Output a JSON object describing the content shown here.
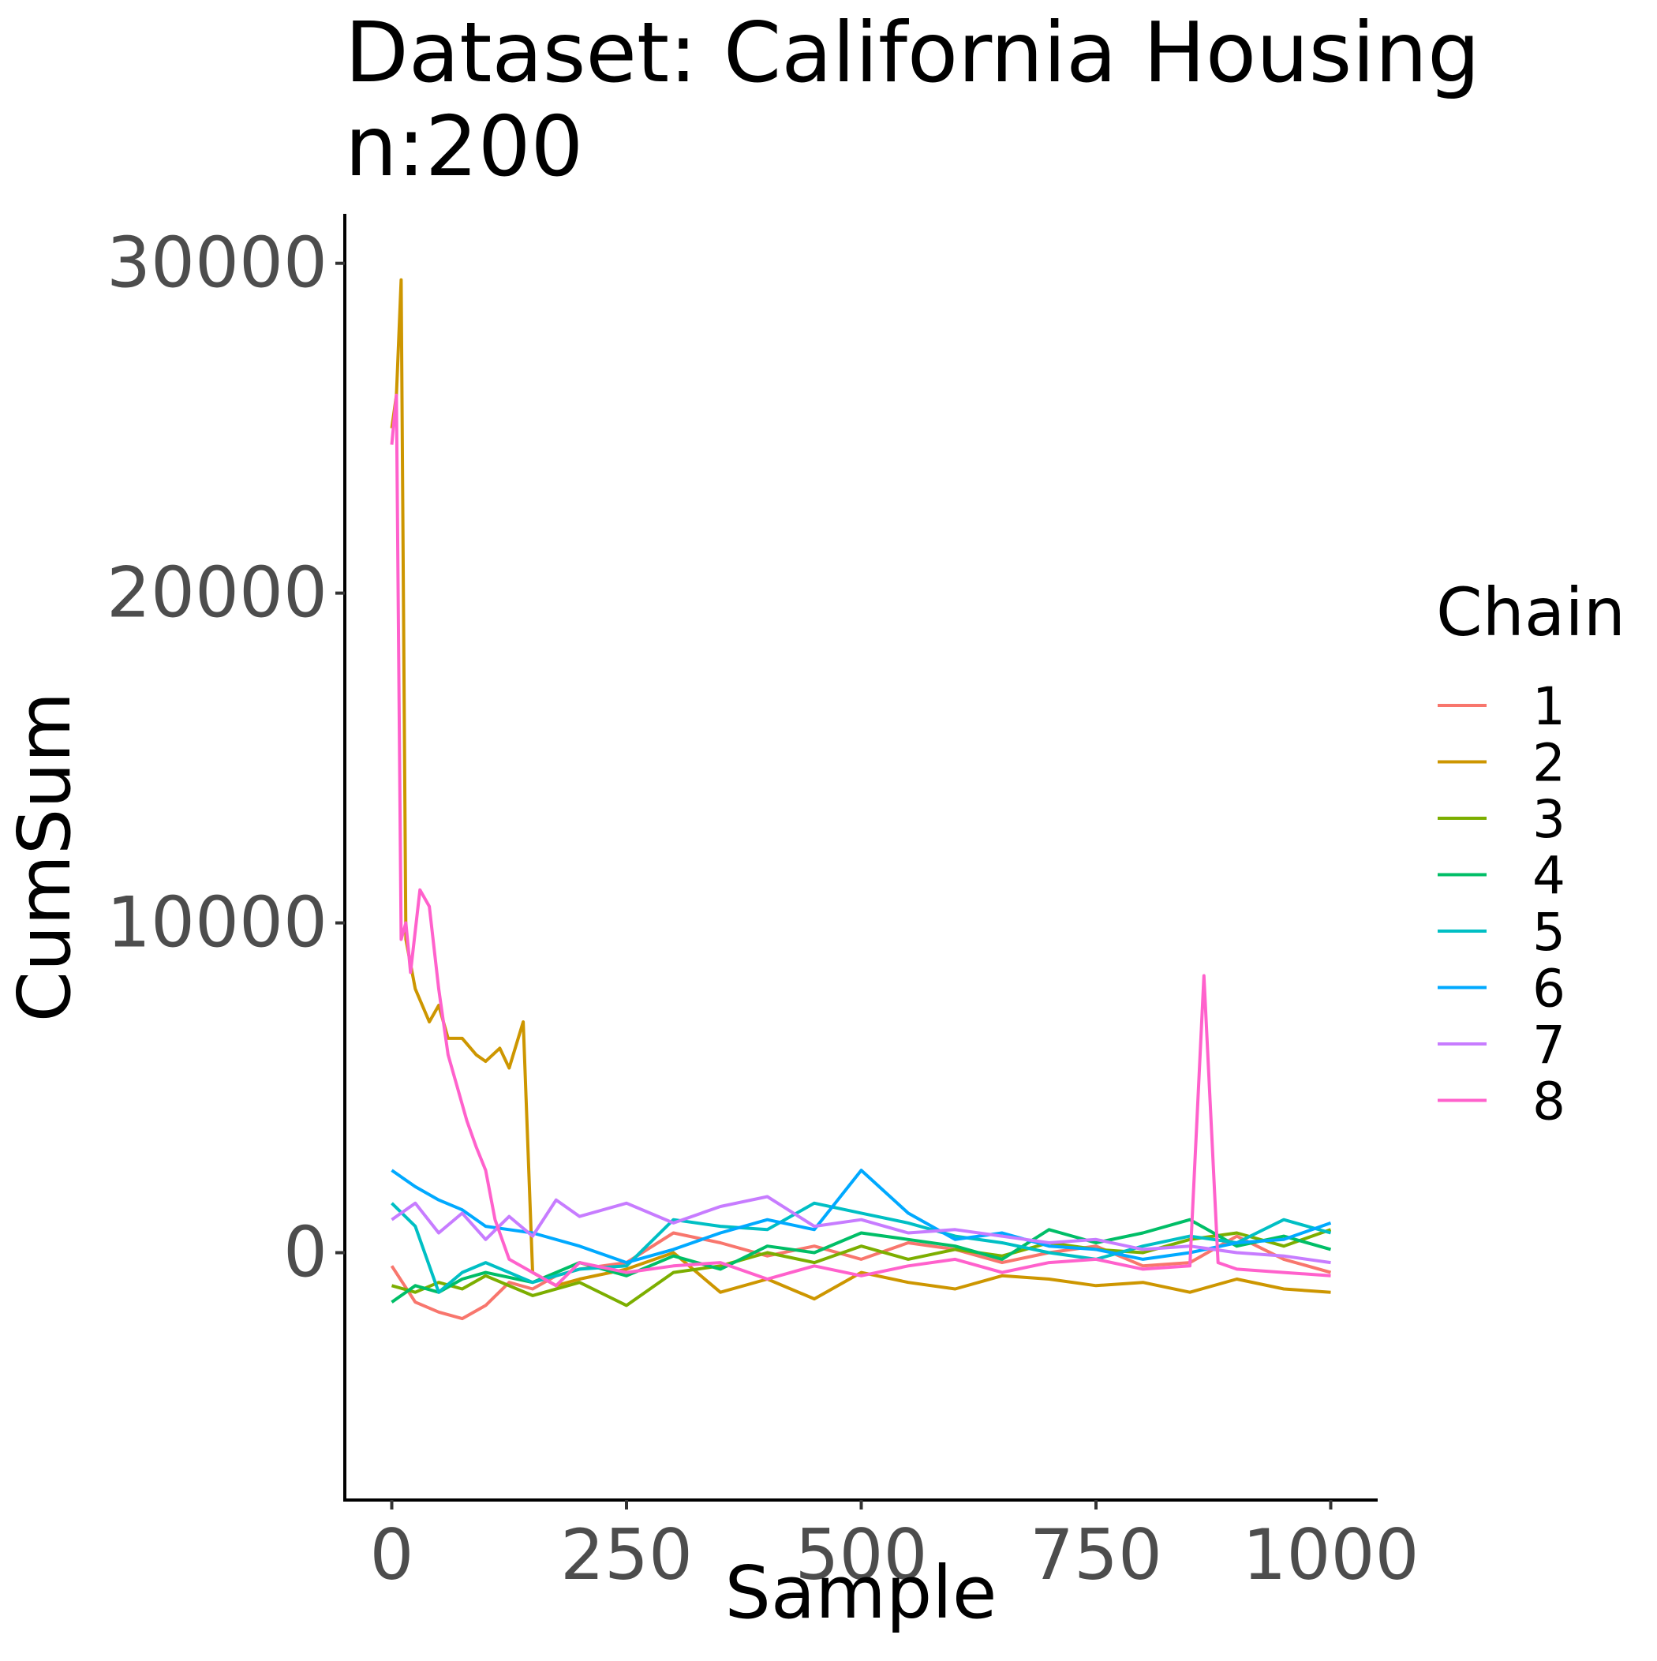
{
  "chart_data": {
    "type": "line",
    "title": [
      "Dataset: California Housing",
      "n:200"
    ],
    "xlabel": "Sample",
    "ylabel": "CumSum",
    "xlim": [
      -50,
      1050
    ],
    "ylim": [
      -7500,
      31500
    ],
    "x_ticks": [
      0,
      250,
      500,
      750,
      1000
    ],
    "y_ticks": [
      0,
      10000,
      20000,
      30000
    ],
    "x_tick_labels": [
      "0",
      "250",
      "500",
      "750",
      "1000"
    ],
    "y_tick_labels": [
      "0",
      "10000",
      "20000",
      "30000"
    ],
    "grid": false,
    "legend": {
      "title": "Chain",
      "position": "right"
    },
    "series": [
      {
        "name": "1",
        "color": "#F8766D",
        "x": [
          0,
          25,
          50,
          75,
          100,
          125,
          150,
          175,
          200,
          250,
          300,
          350,
          400,
          450,
          500,
          550,
          600,
          650,
          700,
          750,
          800,
          850,
          900,
          950,
          1000
        ],
        "values": [
          -400,
          -1500,
          -1800,
          -2000,
          -1600,
          -900,
          -1100,
          -700,
          -500,
          -300,
          600,
          300,
          -100,
          200,
          -200,
          300,
          100,
          -300,
          0,
          200,
          -400,
          -300,
          500,
          -200,
          -600
        ]
      },
      {
        "name": "2",
        "color": "#CD9600",
        "x": [
          0,
          5,
          10,
          15,
          25,
          40,
          50,
          60,
          75,
          90,
          100,
          115,
          125,
          140,
          150,
          175,
          200,
          250,
          300,
          350,
          400,
          450,
          500,
          550,
          600,
          650,
          700,
          750,
          800,
          850,
          900,
          950,
          1000
        ],
        "values": [
          25000,
          26000,
          29500,
          9500,
          8000,
          7000,
          7500,
          6500,
          6500,
          6000,
          5800,
          6200,
          5600,
          7000,
          -600,
          -1000,
          -800,
          -500,
          0,
          -1200,
          -800,
          -1400,
          -600,
          -900,
          -1100,
          -700,
          -800,
          -1000,
          -900,
          -1200,
          -800,
          -1100,
          -1200
        ]
      },
      {
        "name": "3",
        "color": "#7CAE00",
        "x": [
          0,
          25,
          50,
          75,
          100,
          150,
          200,
          250,
          300,
          350,
          400,
          450,
          500,
          550,
          600,
          650,
          700,
          750,
          800,
          850,
          900,
          950,
          1000
        ],
        "values": [
          -1000,
          -1200,
          -900,
          -1100,
          -700,
          -1300,
          -900,
          -1600,
          -600,
          -400,
          0,
          -300,
          200,
          -200,
          100,
          -100,
          300,
          100,
          0,
          400,
          600,
          200,
          700
        ]
      },
      {
        "name": "4",
        "color": "#00BE67",
        "x": [
          0,
          25,
          50,
          75,
          100,
          150,
          200,
          250,
          300,
          350,
          400,
          450,
          500,
          550,
          600,
          650,
          700,
          750,
          800,
          850,
          900,
          950,
          1000
        ],
        "values": [
          -1500,
          -1000,
          -1200,
          -800,
          -600,
          -900,
          -300,
          -700,
          -100,
          -500,
          200,
          0,
          600,
          400,
          200,
          -200,
          700,
          300,
          600,
          1000,
          200,
          500,
          100
        ]
      },
      {
        "name": "5",
        "color": "#00BFC4",
        "x": [
          0,
          25,
          50,
          75,
          100,
          150,
          200,
          250,
          300,
          350,
          400,
          450,
          500,
          550,
          600,
          650,
          700,
          750,
          800,
          850,
          900,
          950,
          1000
        ],
        "values": [
          1500,
          800,
          -1200,
          -600,
          -300,
          -900,
          -500,
          -400,
          1000,
          800,
          700,
          1500,
          1200,
          900,
          500,
          300,
          0,
          -200,
          200,
          500,
          300,
          1000,
          600
        ]
      },
      {
        "name": "6",
        "color": "#00A9FF",
        "x": [
          0,
          25,
          50,
          75,
          100,
          150,
          200,
          250,
          300,
          350,
          400,
          450,
          500,
          550,
          600,
          650,
          700,
          750,
          800,
          850,
          900,
          950,
          1000
        ],
        "values": [
          2500,
          2000,
          1600,
          1300,
          800,
          600,
          200,
          -300,
          100,
          600,
          1000,
          700,
          2500,
          1200,
          400,
          600,
          200,
          100,
          -200,
          0,
          300,
          400,
          900
        ]
      },
      {
        "name": "7",
        "color": "#C77CFF",
        "x": [
          0,
          25,
          50,
          75,
          100,
          125,
          150,
          175,
          200,
          250,
          300,
          350,
          400,
          450,
          500,
          550,
          600,
          650,
          700,
          750,
          800,
          850,
          900,
          950,
          1000
        ],
        "values": [
          1000,
          1500,
          600,
          1200,
          400,
          1100,
          500,
          1600,
          1100,
          1500,
          900,
          1400,
          1700,
          800,
          1000,
          600,
          700,
          500,
          300,
          400,
          100,
          200,
          0,
          -100,
          -300
        ]
      },
      {
        "name": "8",
        "color": "#FF61CC",
        "x": [
          0,
          5,
          10,
          15,
          20,
          30,
          40,
          50,
          60,
          70,
          80,
          90,
          100,
          110,
          125,
          150,
          175,
          200,
          250,
          300,
          350,
          400,
          450,
          500,
          550,
          600,
          650,
          700,
          750,
          800,
          850,
          865,
          880,
          900,
          950,
          1000
        ],
        "values": [
          24500,
          26000,
          9500,
          10000,
          8500,
          11000,
          10500,
          8000,
          6000,
          5000,
          4000,
          3200,
          2500,
          1000,
          -200,
          -600,
          -1000,
          -300,
          -600,
          -400,
          -300,
          -800,
          -400,
          -700,
          -400,
          -200,
          -600,
          -300,
          -200,
          -500,
          -400,
          8400,
          -300,
          -500,
          -600,
          -700
        ]
      }
    ]
  }
}
